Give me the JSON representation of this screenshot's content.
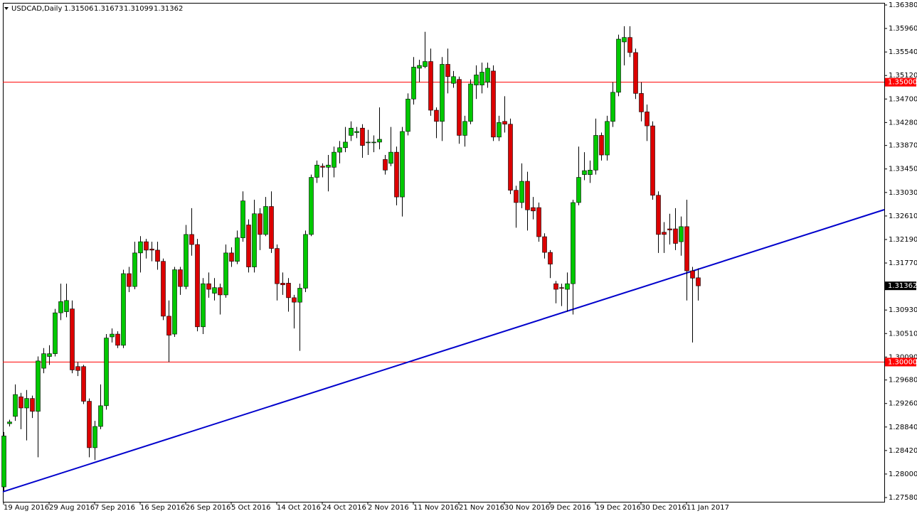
{
  "chart_data": {
    "type": "candlestick",
    "title": "USDCAD,Daily",
    "categories": [
      "19 Aug 2016",
      null,
      null,
      null,
      null,
      null,
      null,
      null,
      "29 Aug 2016",
      null,
      null,
      null,
      null,
      null,
      null,
      null,
      "7 Sep 2016",
      null,
      null,
      null,
      null,
      null,
      null,
      null,
      "16 Sep 2016",
      null,
      null,
      null,
      null,
      null,
      null,
      null,
      "26 Sep 2016",
      null,
      null,
      null,
      null,
      null,
      null,
      null,
      "5 Oct 2016",
      null,
      null,
      null,
      null,
      null,
      null,
      null,
      "14 Oct 2016",
      null,
      null,
      null,
      null,
      null,
      null,
      null,
      "24 Oct 2016",
      null,
      null,
      null,
      null,
      null,
      null,
      null,
      "2 Nov 2016",
      null,
      null,
      null,
      null,
      null,
      null,
      null,
      "11 Nov 2016",
      null,
      null,
      null,
      null,
      null,
      null,
      null,
      "21 Nov 2016",
      null,
      null,
      null,
      null,
      null,
      null,
      null,
      "30 Nov 2016",
      null,
      null,
      null,
      null,
      null,
      null,
      null,
      "9 Dec 2016",
      null,
      null,
      null,
      null,
      null,
      null,
      null,
      "19 Dec 2016",
      null,
      null,
      null,
      null,
      null,
      null,
      null,
      "30 Dec 2016",
      null,
      null,
      null,
      null,
      null,
      null,
      null,
      "11 Jan 2017",
      null,
      null
    ],
    "open": [
      1.2777,
      1.289,
      1.2903,
      1.2938,
      1.2918,
      1.2935,
      1.2912,
      1.2989,
      1.301,
      1.3015,
      1.3088,
      1.309,
      1.3095,
      1.2992,
      1.2992,
      1.293,
      1.2847,
      1.2885,
      1.2922,
      1.3045,
      1.305,
      1.303,
      1.3158,
      1.3135,
      1.3195,
      1.3215,
      1.3202,
      1.32,
      1.318,
      1.3082,
      1.305,
      1.3165,
      1.3135,
      1.3228,
      1.321,
      1.3063,
      1.314,
      1.3123,
      1.3133,
      1.312,
      1.3195,
      1.318,
      1.3222,
      1.3245,
      1.317,
      1.3265,
      1.3228,
      1.3278,
      1.3203,
      1.3141,
      1.3141,
      1.3115,
      1.3107,
      1.3132,
      1.3228,
      1.333,
      1.335,
      1.3348,
      1.3348,
      1.3375,
      1.3383,
      1.3405,
      1.341,
      1.3418,
      1.3393,
      1.3393,
      1.3393,
      1.3362,
      1.3355,
      1.3375,
      1.3295,
      1.3412,
      1.347,
      1.3525,
      1.3528,
      1.3537,
      1.345,
      1.343,
      1.3532,
      1.3498,
      1.3505,
      1.3405,
      1.343,
      1.3495,
      1.3495,
      1.35,
      1.352,
      1.3402,
      1.343,
      1.3425,
      1.3307,
      1.3285,
      1.3323,
      1.3276,
      1.3276,
      1.3224,
      1.3196,
      1.314,
      1.3133,
      1.313,
      1.314,
      1.3285,
      1.3335,
      1.3335,
      1.3343,
      1.3405,
      1.337,
      1.343,
      1.3482,
      1.3572,
      1.358,
      1.3553,
      1.348,
      1.3447,
      1.3422,
      1.3298,
      1.3232,
      1.3238,
      1.3238,
      1.3215,
      1.3242,
      1.3163,
      1.31506
    ],
    "high": [
      1.2875,
      1.2897,
      1.296,
      1.2945,
      1.295,
      1.294,
      1.301,
      1.3025,
      1.303,
      1.3095,
      1.314,
      1.314,
      1.311,
      1.3,
      1.2995,
      1.2935,
      1.2895,
      1.296,
      1.305,
      1.306,
      1.3055,
      1.3165,
      1.317,
      1.3215,
      1.3225,
      1.322,
      1.3215,
      1.3215,
      1.3185,
      1.311,
      1.317,
      1.317,
      1.3245,
      1.3275,
      1.322,
      1.315,
      1.316,
      1.315,
      1.314,
      1.321,
      1.3205,
      1.3235,
      1.3305,
      1.3255,
      1.329,
      1.3275,
      1.3295,
      1.3305,
      1.321,
      1.316,
      1.315,
      1.312,
      1.314,
      1.3235,
      1.3335,
      1.336,
      1.3355,
      1.337,
      1.3385,
      1.3395,
      1.342,
      1.343,
      1.342,
      1.3425,
      1.3415,
      1.3405,
      1.3455,
      1.337,
      1.342,
      1.3385,
      1.342,
      1.348,
      1.3545,
      1.354,
      1.359,
      1.356,
      1.3455,
      1.3545,
      1.356,
      1.352,
      1.351,
      1.344,
      1.3505,
      1.353,
      1.3535,
      1.3535,
      1.353,
      1.344,
      1.3475,
      1.3435,
      1.3315,
      1.3355,
      1.334,
      1.3295,
      1.3285,
      1.323,
      1.32,
      1.3145,
      1.314,
      1.316,
      1.329,
      1.3385,
      1.3375,
      1.336,
      1.3435,
      1.341,
      1.344,
      1.35,
      1.3585,
      1.36,
      1.36,
      1.356,
      1.35,
      1.346,
      1.343,
      1.3305,
      1.325,
      1.3265,
      1.3275,
      1.326,
      1.329,
      1.317,
      1.31673
    ],
    "low": [
      1.277,
      1.2885,
      1.2895,
      1.288,
      1.286,
      1.29,
      1.283,
      1.298,
      1.2995,
      1.301,
      1.3075,
      1.308,
      1.298,
      1.2975,
      1.2925,
      1.283,
      1.2825,
      1.288,
      1.2915,
      1.3035,
      1.3025,
      1.3025,
      1.3125,
      1.313,
      1.316,
      1.3185,
      1.318,
      1.3165,
      1.3075,
      1.3,
      1.3045,
      1.312,
      1.313,
      1.319,
      1.3055,
      1.305,
      1.3115,
      1.311,
      1.3085,
      1.3115,
      1.317,
      1.3175,
      1.3215,
      1.316,
      1.316,
      1.32,
      1.3225,
      1.3195,
      1.311,
      1.312,
      1.309,
      1.306,
      1.302,
      1.3125,
      1.3225,
      1.332,
      1.333,
      1.3305,
      1.333,
      1.3355,
      1.3375,
      1.3395,
      1.34,
      1.3365,
      1.337,
      1.3375,
      1.338,
      1.3335,
      1.335,
      1.328,
      1.326,
      1.3405,
      1.346,
      1.35,
      1.3525,
      1.344,
      1.34,
      1.3395,
      1.348,
      1.349,
      1.339,
      1.3385,
      1.3425,
      1.347,
      1.348,
      1.349,
      1.3395,
      1.3395,
      1.341,
      1.33,
      1.324,
      1.3275,
      1.3235,
      1.3255,
      1.3215,
      1.3185,
      1.315,
      1.3105,
      1.31,
      1.309,
      1.3085,
      1.328,
      1.3325,
      1.332,
      1.3335,
      1.336,
      1.336,
      1.342,
      1.3475,
      1.353,
      1.3545,
      1.347,
      1.343,
      1.3395,
      1.329,
      1.3195,
      1.3195,
      1.321,
      1.32,
      1.319,
      1.311,
      1.3035,
      1.31099
    ],
    "close": [
      1.2868,
      1.2893,
      1.2942,
      1.2918,
      1.2935,
      1.2912,
      1.3002,
      1.3015,
      1.3015,
      1.3088,
      1.3108,
      1.311,
      1.2986,
      1.2985,
      1.293,
      1.2847,
      1.2885,
      1.2922,
      1.3043,
      1.305,
      1.303,
      1.3158,
      1.3135,
      1.3195,
      1.3215,
      1.32,
      1.32,
      1.318,
      1.3082,
      1.3048,
      1.3165,
      1.3135,
      1.3228,
      1.321,
      1.3063,
      1.314,
      1.313,
      1.3133,
      1.312,
      1.3195,
      1.318,
      1.3222,
      1.3288,
      1.317,
      1.3265,
      1.3228,
      1.3278,
      1.3203,
      1.314,
      1.3138,
      1.3115,
      1.3107,
      1.3132,
      1.3228,
      1.333,
      1.3352,
      1.3348,
      1.3352,
      1.3375,
      1.3383,
      1.3393,
      1.3418,
      1.3412,
      1.3387,
      1.3393,
      1.3393,
      1.3398,
      1.3343,
      1.3375,
      1.3295,
      1.3412,
      1.347,
      1.3527,
      1.353,
      1.3537,
      1.345,
      1.343,
      1.3532,
      1.351,
      1.351,
      1.3405,
      1.343,
      1.3497,
      1.3513,
      1.3518,
      1.3525,
      1.3402,
      1.3428,
      1.3425,
      1.3307,
      1.3285,
      1.3323,
      1.3272,
      1.327,
      1.3224,
      1.3196,
      1.3175,
      1.313,
      1.3132,
      1.314,
      1.3285,
      1.333,
      1.3342,
      1.3343,
      1.3405,
      1.337,
      1.343,
      1.3482,
      1.3577,
      1.358,
      1.3553,
      1.348,
      1.3447,
      1.3422,
      1.3298,
      1.3228,
      1.3228,
      1.3236,
      1.3212,
      1.3242,
      1.3163,
      1.315,
      1.31362
    ],
    "up_color": "#00c800",
    "down_color": "#dc0000",
    "wick_color": "#000000",
    "ylim": [
      1.27504,
      1.36418
    ],
    "yticks": [
      {
        "value": 1.3638,
        "label": "1.36380"
      },
      {
        "value": 1.3596,
        "label": "1.35960"
      },
      {
        "value": 1.3554,
        "label": "1.35540"
      },
      {
        "value": 1.3512,
        "label": "1.35120"
      },
      {
        "value": 1.347,
        "label": "1.34700"
      },
      {
        "value": 1.3428,
        "label": "1.34280"
      },
      {
        "value": 1.3387,
        "label": "1.33870"
      },
      {
        "value": 1.3345,
        "label": "1.33450"
      },
      {
        "value": 1.3303,
        "label": "1.33030"
      },
      {
        "value": 1.3261,
        "label": "1.32610"
      },
      {
        "value": 1.3219,
        "label": "1.32190"
      },
      {
        "value": 1.3177,
        "label": "1.31770"
      },
      {
        "value": 1.3093,
        "label": "1.30930"
      },
      {
        "value": 1.3051,
        "label": "1.30510"
      },
      {
        "value": 1.3009,
        "label": "1.30090"
      },
      {
        "value": 1.2968,
        "label": "1.29680"
      },
      {
        "value": 1.2926,
        "label": "1.29260"
      },
      {
        "value": 1.2884,
        "label": "1.28840"
      },
      {
        "value": 1.2842,
        "label": "1.28420"
      },
      {
        "value": 1.28,
        "label": "1.28000"
      },
      {
        "value": 1.2758,
        "label": "1.27580"
      }
    ],
    "hlines": [
      {
        "value": 1.35,
        "label": "1.35000",
        "color": "#ff0000"
      },
      {
        "value": 1.3,
        "label": "1.30000",
        "color": "#ff0000"
      }
    ],
    "trendline": {
      "values": [
        1.27682,
        1.32723
      ],
      "color": "#0000cc"
    }
  }
}
